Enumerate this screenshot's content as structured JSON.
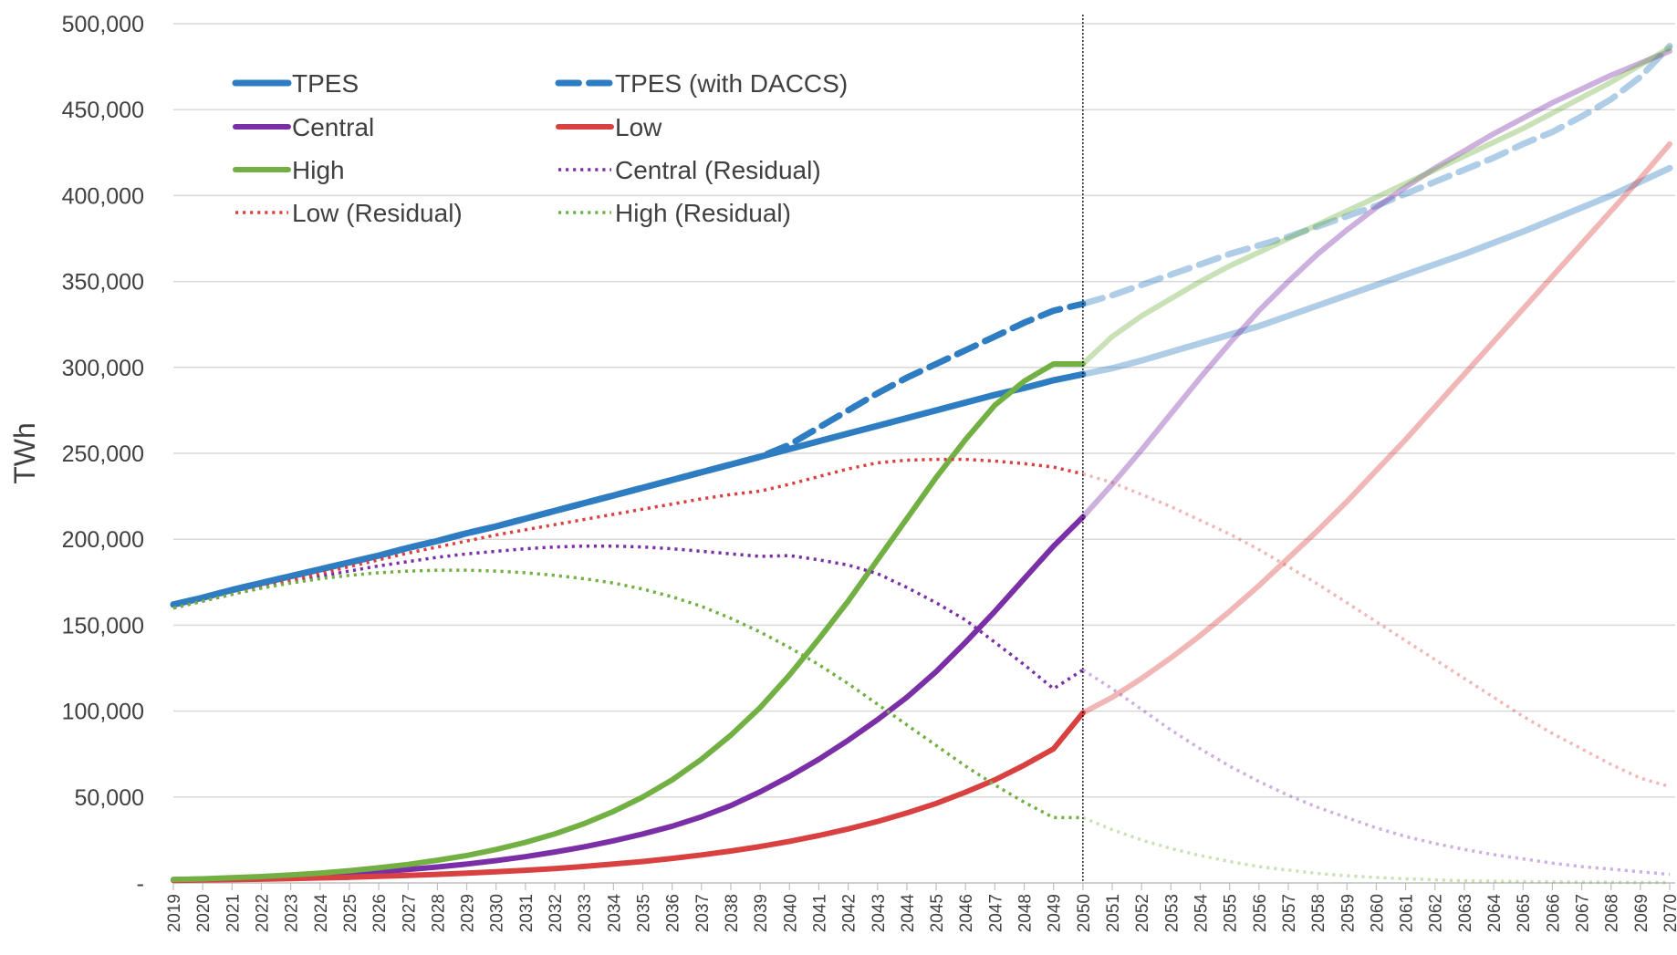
{
  "chart_data": {
    "type": "line",
    "title": "",
    "xlabel": "",
    "ylabel": "TWh",
    "x": [
      2019,
      2020,
      2021,
      2022,
      2023,
      2024,
      2025,
      2026,
      2027,
      2028,
      2029,
      2030,
      2031,
      2032,
      2033,
      2034,
      2035,
      2036,
      2037,
      2038,
      2039,
      2040,
      2041,
      2042,
      2043,
      2044,
      2045,
      2046,
      2047,
      2048,
      2049,
      2050,
      2051,
      2052,
      2053,
      2054,
      2055,
      2056,
      2057,
      2058,
      2059,
      2060,
      2061,
      2062,
      2063,
      2064,
      2065,
      2066,
      2067,
      2068,
      2069,
      2070
    ],
    "x_tick_labels": [
      "2019",
      "2020",
      "2021",
      "2022",
      "2023",
      "2024",
      "2025",
      "2026",
      "2027",
      "2028",
      "2029",
      "2030",
      "2031",
      "2032",
      "2033",
      "2034",
      "2035",
      "2036",
      "2037",
      "2038",
      "2039",
      "2040",
      "2041",
      "2042",
      "2043",
      "2044",
      "2045",
      "2046",
      "2047",
      "2048",
      "2049",
      "2050",
      "2051",
      "2052",
      "2053",
      "2054",
      "2055",
      "2056",
      "2057",
      "2058",
      "2059",
      "2060",
      "2061",
      "2062",
      "2063",
      "2064",
      "2065",
      "2066",
      "2067",
      "2068",
      "2069",
      "2070"
    ],
    "ylim": [
      0,
      500000
    ],
    "y_ticks": [
      0,
      50000,
      100000,
      150000,
      200000,
      250000,
      300000,
      350000,
      400000,
      450000,
      500000
    ],
    "y_tick_labels": [
      "-",
      "50,000",
      "100,000",
      "150,000",
      "200,000",
      "250,000",
      "300,000",
      "350,000",
      "400,000",
      "450,000",
      "500,000"
    ],
    "grid": "horizontal",
    "vertical_marker_x": 2050,
    "legend_position": "top-left",
    "series": [
      {
        "name": "TPES",
        "color": "#2E7CC1",
        "style": "solid",
        "width": 7,
        "values": [
          162000,
          166000,
          170500,
          174500,
          178500,
          182500,
          186500,
          190500,
          195000,
          199000,
          203500,
          207500,
          212000,
          216500,
          221000,
          225500,
          230000,
          234500,
          239000,
          243500,
          248000,
          252500,
          257000,
          261500,
          266000,
          270500,
          275000,
          279500,
          284000,
          288000,
          292500,
          296000,
          299500,
          304000,
          309000,
          314000,
          319000,
          324000,
          330000,
          336000,
          342000,
          348000,
          354000,
          360000,
          366000,
          372500,
          379000,
          386000,
          393000,
          400000,
          408000,
          416000
        ]
      },
      {
        "name": "TPES (with DACCS)",
        "color": "#2E7CC1",
        "style": "dashed",
        "width": 7,
        "values": [
          162000,
          166000,
          170500,
          174500,
          178500,
          182500,
          186500,
          190500,
          195000,
          199000,
          203500,
          207500,
          212000,
          216500,
          221000,
          225500,
          230000,
          234500,
          239000,
          243500,
          248000,
          255000,
          265000,
          275000,
          285000,
          294000,
          302000,
          310000,
          318000,
          326000,
          333000,
          337000,
          342000,
          348000,
          354000,
          360000,
          366000,
          371000,
          376000,
          382000,
          388000,
          394000,
          401000,
          408000,
          415000,
          422000,
          430000,
          437000,
          446000,
          456000,
          469000,
          487000
        ]
      },
      {
        "name": "Central",
        "color": "#7B2FA6",
        "style": "solid",
        "width": 6,
        "values": [
          2000,
          2300,
          2700,
          3200,
          3800,
          4500,
          5400,
          6500,
          7800,
          9300,
          11000,
          13000,
          15300,
          18000,
          21000,
          24500,
          28500,
          33000,
          38500,
          45000,
          53000,
          62000,
          72000,
          83000,
          95000,
          108000,
          123000,
          140000,
          158000,
          177000,
          196000,
          213000,
          232000,
          252000,
          273000,
          294000,
          314000,
          333000,
          350000,
          366000,
          380000,
          393000,
          405000,
          416000,
          426000,
          436000,
          445000,
          454000,
          462000,
          470000,
          477000,
          484000
        ]
      },
      {
        "name": "Low",
        "color": "#D94040",
        "style": "solid",
        "width": 6,
        "values": [
          1500,
          1700,
          1900,
          2200,
          2500,
          2900,
          3300,
          3800,
          4400,
          5000,
          5700,
          6500,
          7400,
          8400,
          9600,
          11000,
          12500,
          14300,
          16300,
          18600,
          21200,
          24200,
          27600,
          31400,
          35800,
          40700,
          46300,
          52800,
          60000,
          68500,
          78000,
          99000,
          108000,
          119000,
          131000,
          144000,
          158000,
          173000,
          189000,
          205000,
          222000,
          240000,
          258000,
          277000,
          296000,
          315000,
          334000,
          353000,
          372000,
          391000,
          410000,
          430000
        ]
      },
      {
        "name": "High",
        "color": "#72B043",
        "style": "solid",
        "width": 6,
        "values": [
          2000,
          2400,
          3000,
          3700,
          4600,
          5700,
          7100,
          8800,
          10800,
          13200,
          16000,
          19500,
          23600,
          28500,
          34500,
          41600,
          50000,
          60000,
          72000,
          86000,
          102000,
          121000,
          142000,
          164000,
          188000,
          212000,
          236000,
          258000,
          278000,
          292000,
          302000,
          302000,
          318000,
          330000,
          340000,
          350000,
          359000,
          367000,
          375000,
          383000,
          391000,
          399000,
          407000,
          415000,
          423000,
          431000,
          439000,
          448000,
          457000,
          466000,
          476000,
          486000
        ]
      },
      {
        "name": "Central (Residual)",
        "color": "#7B2FA6",
        "style": "dotted",
        "width": 3.5,
        "values": [
          160000,
          164000,
          168000,
          172000,
          175500,
          178500,
          181500,
          184500,
          187000,
          189500,
          191500,
          193000,
          194500,
          195500,
          196000,
          196000,
          195500,
          194500,
          193000,
          191500,
          190000,
          190500,
          188000,
          185000,
          180000,
          172000,
          163000,
          153000,
          140000,
          127000,
          113000,
          124000,
          113000,
          101000,
          89000,
          78000,
          68000,
          59000,
          51000,
          44000,
          38000,
          32000,
          27000,
          23000,
          19500,
          16500,
          14000,
          11500,
          9500,
          8000,
          6500,
          5000
        ]
      },
      {
        "name": "Low (Residual)",
        "color": "#D94040",
        "style": "dotted",
        "width": 3.5,
        "values": [
          160000,
          164000,
          168000,
          172000,
          176000,
          180000,
          184000,
          188000,
          192000,
          195500,
          199000,
          202500,
          205500,
          208500,
          211500,
          214500,
          217500,
          220500,
          223500,
          226000,
          228000,
          232000,
          236500,
          241000,
          244500,
          246000,
          246500,
          246500,
          245500,
          244000,
          242000,
          238000,
          233000,
          226000,
          219000,
          211000,
          203000,
          194000,
          184000,
          174000,
          163000,
          152000,
          141000,
          130000,
          119000,
          108000,
          97000,
          87000,
          78000,
          69000,
          61000,
          56000
        ]
      },
      {
        "name": "High (Residual)",
        "color": "#72B043",
        "style": "dotted",
        "width": 3.5,
        "values": [
          160000,
          164000,
          168000,
          171500,
          174500,
          177000,
          179000,
          180500,
          181500,
          182000,
          182000,
          181500,
          180500,
          179000,
          177000,
          174500,
          171000,
          166500,
          161000,
          154000,
          146000,
          137000,
          127000,
          116000,
          104000,
          92000,
          80000,
          68000,
          57000,
          47000,
          38000,
          38000,
          31000,
          25000,
          20000,
          16000,
          12500,
          9500,
          7500,
          5500,
          4200,
          3200,
          2400,
          1800,
          1300,
          1000,
          800,
          600,
          450,
          350,
          250,
          200
        ]
      }
    ]
  }
}
